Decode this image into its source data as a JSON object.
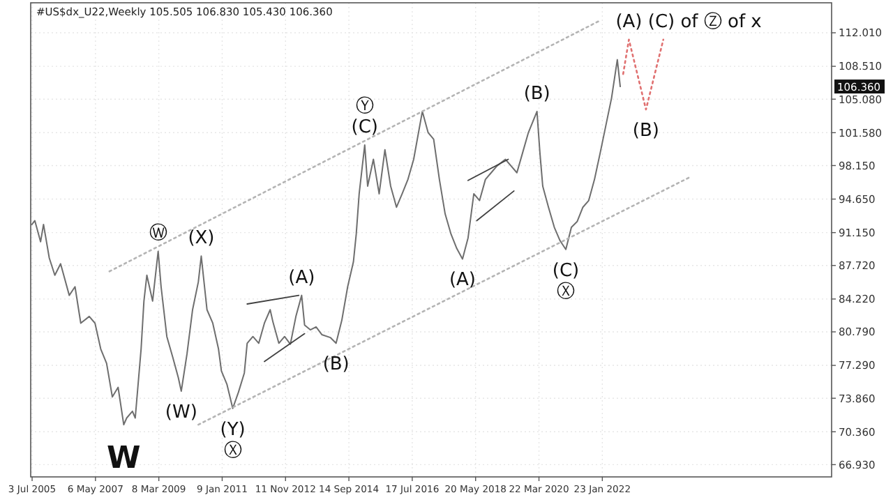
{
  "chart_data": {
    "type": "line",
    "title": "#US$dx_U22,Weekly  105.505 106.830 105.430 106.360",
    "series": [
      {
        "color": "#6e6e6e",
        "x": [
          "2005-07",
          "2005-08",
          "2005-10",
          "2005-11",
          "2006-01",
          "2006-03",
          "2006-05",
          "2006-08",
          "2006-10",
          "2006-12",
          "2007-03",
          "2007-05",
          "2007-07",
          "2007-09",
          "2007-11",
          "2008-01",
          "2008-03",
          "2008-04",
          "2008-06",
          "2008-07",
          "2008-09",
          "2008-10",
          "2008-11",
          "2009-01",
          "2009-03",
          "2009-04",
          "2009-06",
          "2009-08",
          "2009-10",
          "2009-11",
          "2010-01",
          "2010-03",
          "2010-05",
          "2010-06",
          "2010-08",
          "2010-10",
          "2010-12",
          "2011-01",
          "2011-03",
          "2011-05",
          "2011-07",
          "2011-09",
          "2011-10",
          "2011-12",
          "2012-02",
          "2012-04",
          "2012-06",
          "2012-07",
          "2012-09",
          "2012-11",
          "2013-01",
          "2013-03",
          "2013-05",
          "2013-06",
          "2013-08",
          "2013-10",
          "2013-12",
          "2014-03",
          "2014-05",
          "2014-07",
          "2014-09",
          "2014-11",
          "2014-12",
          "2015-01",
          "2015-03",
          "2015-04",
          "2015-06",
          "2015-08",
          "2015-10",
          "2015-12",
          "2016-02",
          "2016-04",
          "2016-06",
          "2016-08",
          "2016-11",
          "2017-01",
          "2017-03",
          "2017-05",
          "2017-07",
          "2017-09",
          "2017-11",
          "2018-01",
          "2018-03",
          "2018-05",
          "2018-07",
          "2018-09",
          "2018-11",
          "2019-01",
          "2019-04",
          "2019-06",
          "2019-08",
          "2019-10",
          "2019-12",
          "2020-03",
          "2020-04",
          "2020-05",
          "2020-07",
          "2020-09",
          "2020-11",
          "2021-01",
          "2021-03",
          "2021-05",
          "2021-07",
          "2021-09",
          "2021-11",
          "2022-01",
          "2022-03",
          "2022-05",
          "2022-07",
          "2022-08"
        ],
        "values": [
          92.0,
          92.4,
          90.2,
          92.0,
          88.5,
          86.7,
          87.9,
          84.6,
          85.5,
          81.7,
          82.4,
          81.7,
          79.0,
          77.5,
          74.0,
          75.0,
          71.1,
          71.8,
          72.5,
          71.8,
          79.0,
          84.0,
          86.7,
          84.0,
          89.2,
          85.5,
          80.3,
          78.2,
          76.0,
          74.6,
          78.5,
          83.1,
          86.0,
          88.7,
          83.1,
          81.7,
          79.0,
          76.7,
          75.3,
          72.8,
          74.5,
          76.5,
          79.6,
          80.3,
          79.6,
          81.7,
          83.1,
          81.8,
          79.6,
          80.3,
          79.5,
          82.4,
          84.6,
          81.5,
          81.0,
          81.3,
          80.5,
          80.2,
          79.6,
          82.0,
          85.5,
          88.1,
          91.0,
          95.2,
          100.3,
          96.0,
          98.8,
          95.2,
          99.8,
          96.0,
          93.8,
          95.2,
          96.7,
          98.8,
          103.8,
          101.6,
          100.9,
          96.7,
          93.1,
          91.0,
          89.5,
          88.4,
          90.6,
          95.2,
          94.5,
          96.7,
          97.4,
          98.1,
          98.8,
          98.1,
          97.4,
          99.5,
          101.6,
          103.8,
          99.5,
          96.0,
          93.8,
          91.7,
          90.3,
          89.4,
          91.7,
          92.3,
          93.8,
          94.5,
          96.7,
          99.5,
          102.3,
          105.2,
          109.2,
          106.4
        ]
      },
      {
        "color": "#b4b4b4",
        "line_style": "dotted",
        "x": [
          "2007-10",
          "2022-01"
        ],
        "values": [
          87.1,
          113.3
        ]
      },
      {
        "color": "#b4b4b4",
        "line_style": "dotted",
        "x": [
          "2010-05",
          "2024-08"
        ],
        "values": [
          71.1,
          96.9
        ]
      },
      {
        "color": "#404040",
        "line_style": "solid",
        "x": [
          "2011-10",
          "2013-04"
        ],
        "values": [
          83.7,
          84.6
        ]
      },
      {
        "color": "#404040",
        "line_style": "solid",
        "x": [
          "2012-04",
          "2013-06"
        ],
        "values": [
          77.7,
          80.6
        ]
      },
      {
        "color": "#404040",
        "line_style": "solid",
        "x": [
          "2018-03",
          "2019-05"
        ],
        "values": [
          96.6,
          98.8
        ]
      },
      {
        "color": "#404040",
        "line_style": "solid",
        "x": [
          "2018-06",
          "2019-07"
        ],
        "values": [
          92.4,
          95.5
        ]
      },
      {
        "color": "#e07070",
        "line_style": "dotted",
        "x": [
          "2022-09",
          "2022-11",
          "2023-05",
          "2023-11"
        ],
        "values": [
          107.7,
          111.3,
          104.0,
          111.3
        ]
      }
    ],
    "xlim": [
      "2005-06-18",
      "2028-09-20"
    ],
    "xticks": [
      {
        "value": "2005-07-03",
        "label": "3 Jul 2005"
      },
      {
        "value": "2007-05-06",
        "label": "6 May 2007"
      },
      {
        "value": "2009-03-08",
        "label": "8 Mar 2009"
      },
      {
        "value": "2011-01-09",
        "label": "9 Jan 2011"
      },
      {
        "value": "2012-11-11",
        "label": "11 Nov 2012"
      },
      {
        "value": "2014-09-14",
        "label": "14 Sep 2014"
      },
      {
        "value": "2016-07-17",
        "label": "17 Jul 2016"
      },
      {
        "value": "2018-05-20",
        "label": "20 May 2018"
      },
      {
        "value": "2020-03-22",
        "label": "22 Mar 2020"
      },
      {
        "value": "2022-01-23",
        "label": "23 Jan 2022"
      }
    ],
    "ylim": [
      65.65,
      115.14
    ],
    "yticks": [
      {
        "value": 66.93,
        "label": "66.930"
      },
      {
        "value": 70.36,
        "label": "70.360"
      },
      {
        "value": 73.86,
        "label": "73.860"
      },
      {
        "value": 77.29,
        "label": "77.290"
      },
      {
        "value": 80.79,
        "label": "80.790"
      },
      {
        "value": 84.22,
        "label": "84.220"
      },
      {
        "value": 87.72,
        "label": "87.720"
      },
      {
        "value": 91.15,
        "label": "91.150"
      },
      {
        "value": 94.65,
        "label": "94.650"
      },
      {
        "value": 98.15,
        "label": "98.150"
      },
      {
        "value": 101.58,
        "label": "101.580"
      },
      {
        "value": 105.08,
        "label": "105.080"
      },
      {
        "value": 108.51,
        "label": "108.510"
      },
      {
        "value": 112.01,
        "label": "112.010"
      }
    ],
    "grid": true,
    "annotations": [
      {
        "text": "W",
        "x": "2008-03",
        "y": 71.1
      },
      {
        "text": "Ⓦ",
        "x": "2009-03",
        "y": 89.2
      },
      {
        "text": "(X)",
        "x": "2010-06",
        "y": 88.7
      },
      {
        "text": "(W)",
        "x": "2009-11",
        "y": 74.6
      },
      {
        "text": "(Y)",
        "x": "2011-05",
        "y": 72.8
      },
      {
        "text": "Ⓧ",
        "x": "2011-05",
        "y": 72.8
      },
      {
        "text": "(A)",
        "x": "2013-05",
        "y": 84.6
      },
      {
        "text": "(B)",
        "x": "2014-05",
        "y": 79.6
      },
      {
        "text": "(C)",
        "x": "2015-03",
        "y": 100.3
      },
      {
        "text": "Ⓨ",
        "x": "2015-03",
        "y": 100.3
      },
      {
        "text": "(A)",
        "x": "2018-01",
        "y": 88.4
      },
      {
        "text": "(B)",
        "x": "2020-03",
        "y": 103.8
      },
      {
        "text": "(C)",
        "x": "2021-01",
        "y": 89.4
      },
      {
        "text": "Ⓧ",
        "x": "2021-01",
        "y": 89.4
      },
      {
        "text": "(A)",
        "x": "2022-11",
        "y": 111.3
      },
      {
        "text": "(C) of Ⓩ of x",
        "x": "2023-11",
        "y": 111.3
      },
      {
        "text": "(B)",
        "x": "2023-05",
        "y": 104.0
      },
      "106.360"
    ]
  }
}
